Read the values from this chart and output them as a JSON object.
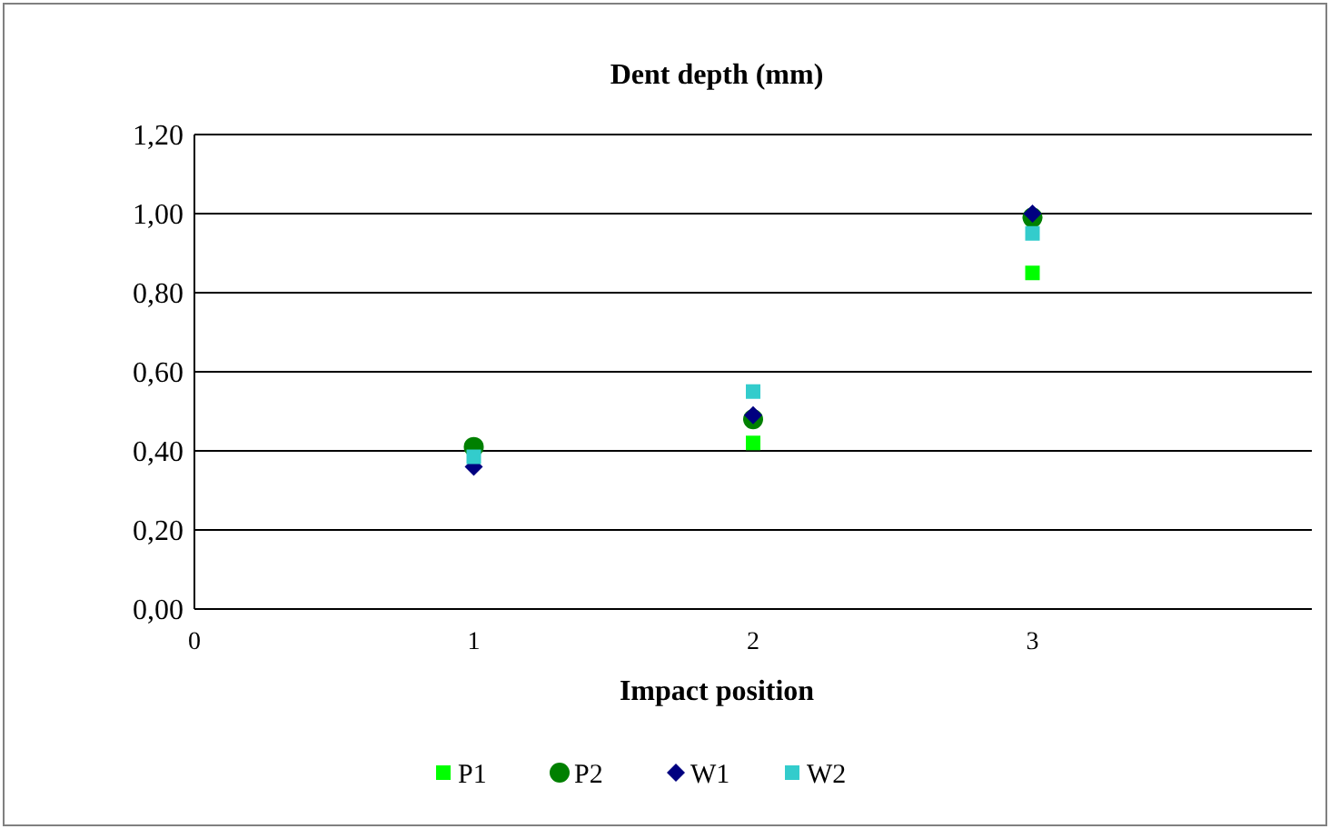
{
  "chart_data": {
    "type": "scatter",
    "title": "Dent depth (mm)",
    "xlabel": "Impact position",
    "x": [
      1,
      2,
      3
    ],
    "series": [
      {
        "name": "P1",
        "color": "#00ff00",
        "marker": "square",
        "values": [
          null,
          0.42,
          0.85
        ]
      },
      {
        "name": "P2",
        "color": "#008000",
        "marker": "circle",
        "values": [
          0.41,
          0.48,
          0.99
        ]
      },
      {
        "name": "W1",
        "color": "#000080",
        "marker": "diamond",
        "values": [
          0.36,
          0.49,
          1.0
        ]
      },
      {
        "name": "W2",
        "color": "#33cccc",
        "marker": "square",
        "values": [
          0.385,
          0.55,
          0.95
        ]
      }
    ],
    "xlim": [
      0,
      4
    ],
    "xticks": [
      0,
      1,
      2,
      3
    ],
    "ylim": [
      0,
      1.2
    ],
    "yticks": [
      {
        "value": 0,
        "label": "0,00"
      },
      {
        "value": 0.2,
        "label": "0,20"
      },
      {
        "value": 0.4,
        "label": "0,40"
      },
      {
        "value": 0.6,
        "label": "0,60"
      },
      {
        "value": 0.8,
        "label": "0,80"
      },
      {
        "value": 1,
        "label": "1,00"
      },
      {
        "value": 1.2,
        "label": "1,20"
      }
    ],
    "grid": "y",
    "legend": "bottom"
  }
}
